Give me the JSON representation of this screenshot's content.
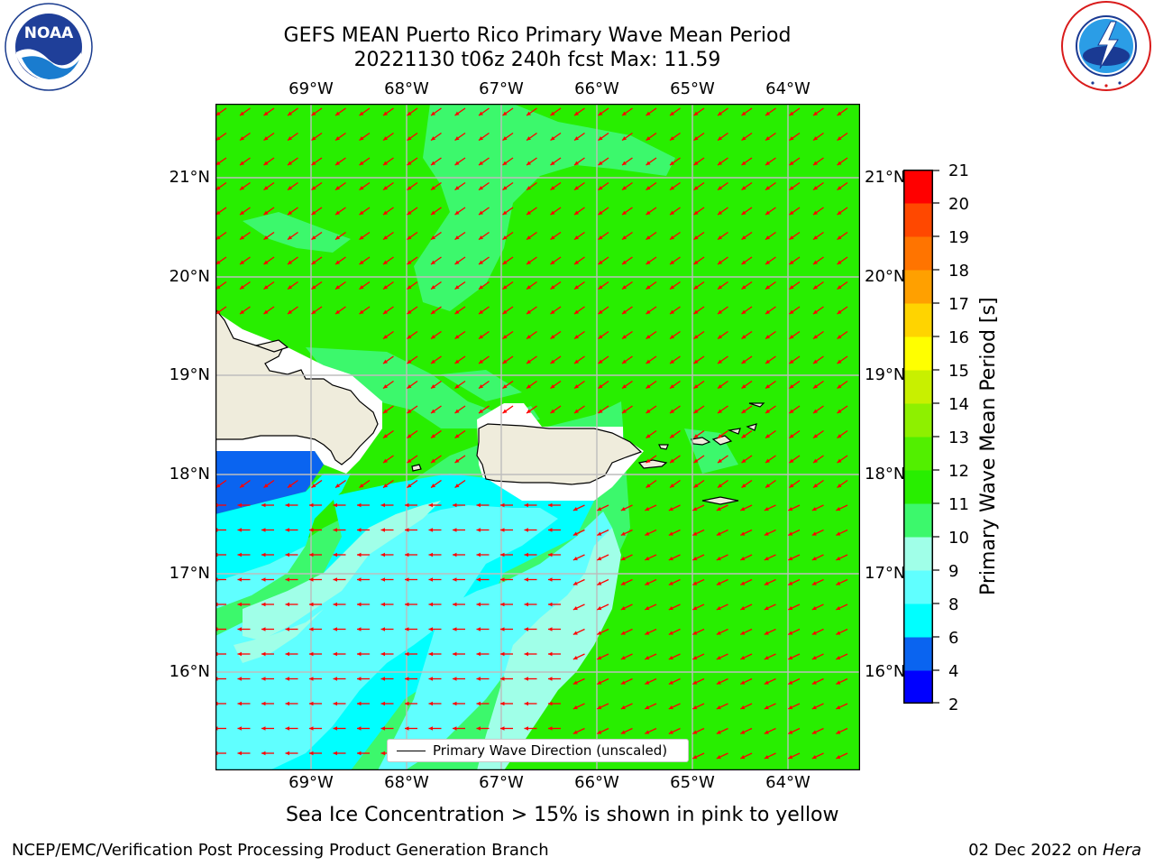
{
  "title": {
    "line1": "GEFS MEAN Puerto Rico Primary Wave Mean Period",
    "line2": "20221130 t06z 240h fcst   Max: 11.59"
  },
  "logos": {
    "noaa": {
      "text": "NOAA",
      "ring": "NATIONAL OCEANIC AND ATMOSPHERIC ADMINISTRATION · U.S. DEPARTMENT OF COMMERCE"
    },
    "nws": {
      "ring": "NATIONAL WEATHER SERVICE"
    }
  },
  "axes": {
    "lon_labels": [
      "69°W",
      "68°W",
      "67°W",
      "66°W",
      "65°W",
      "64°W"
    ],
    "lat_labels": [
      "21°N",
      "20°N",
      "19°N",
      "18°N",
      "17°N",
      "16°N"
    ],
    "right_lat_labels": [
      "21°N",
      "20°N",
      "19°N",
      "18°N",
      "17°N",
      "16°N"
    ]
  },
  "colorbar": {
    "title": "Primary Wave Mean Period [s]",
    "ticks": [
      "2",
      "4",
      "6",
      "8",
      "9",
      "10",
      "11",
      "12",
      "13",
      "14",
      "15",
      "16",
      "17",
      "18",
      "19",
      "20",
      "21"
    ],
    "colors": [
      "#0000ff",
      "#0a64f0",
      "#00ffff",
      "#60ffff",
      "#a0ffe8",
      "#3cf86c",
      "#28ee00",
      "#52ef00",
      "#8ef000",
      "#c8f000",
      "#ffff00",
      "#ffd400",
      "#ffa000",
      "#ff7400",
      "#ff4800",
      "#ff0000"
    ]
  },
  "legend": {
    "label": "Primary Wave Direction (unscaled)"
  },
  "note": "Sea Ice Concentration > 15% is shown in pink to yellow",
  "footer": {
    "left": "NCEP/EMC/Verification Post Processing Product Generation Branch",
    "date": "02 Dec 2022 on ",
    "machine": "Hera"
  },
  "map_colors": {
    "land": "#efecdc",
    "arrow": "#ff0000",
    "grid": "#bdbdbd"
  }
}
